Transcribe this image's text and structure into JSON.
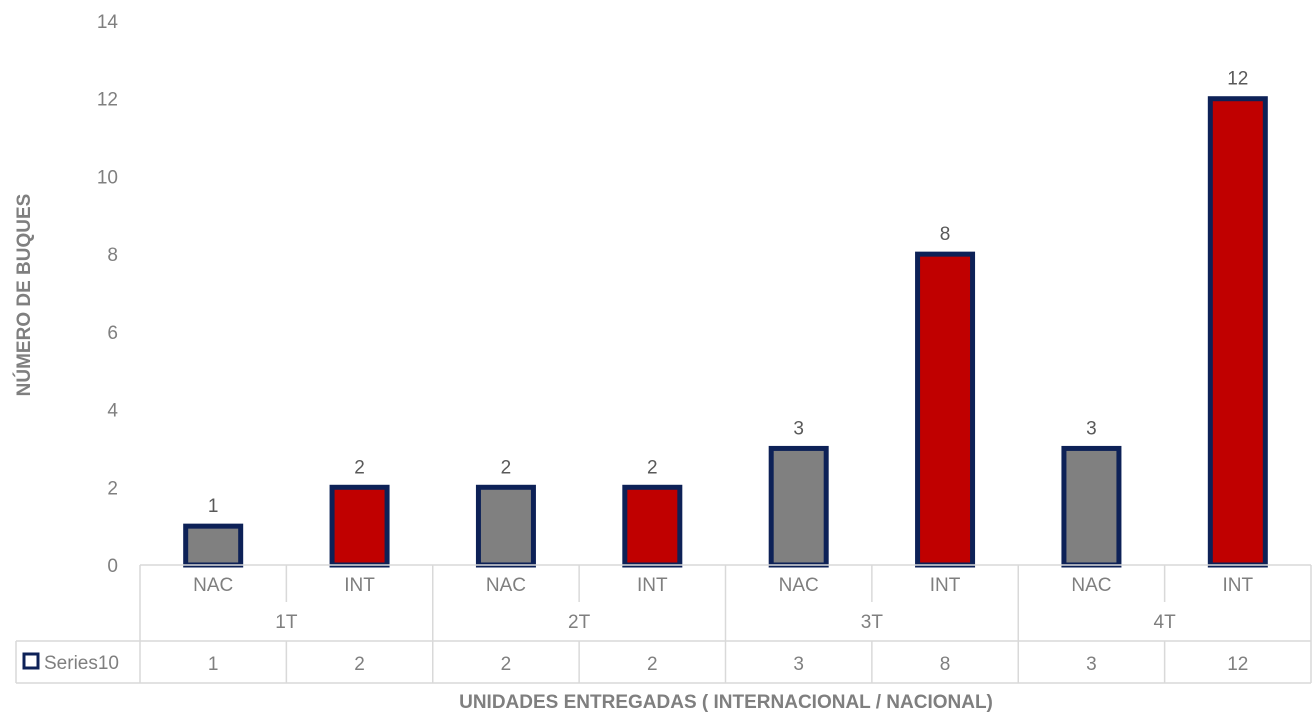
{
  "chart_data": {
    "type": "bar",
    "ylabel": "NÚMERO DE BUQUES",
    "xlabel": "UNIDADES ENTREGADAS ( INTERNACIONAL / NACIONAL)",
    "ylim": [
      0,
      14
    ],
    "yticks": [
      0,
      2,
      4,
      6,
      8,
      10,
      12,
      14
    ],
    "groups": [
      "1T",
      "2T",
      "3T",
      "4T"
    ],
    "categories": [
      "NAC",
      "INT",
      "NAC",
      "INT",
      "NAC",
      "INT",
      "NAC",
      "INT"
    ],
    "series": [
      {
        "name": "Series10",
        "values": [
          1,
          2,
          2,
          2,
          3,
          8,
          3,
          12
        ]
      }
    ],
    "data_table": true,
    "legend_in_table": true,
    "colors": {
      "NAC": "#808080",
      "INT": "#c00000",
      "border": "#0d2157",
      "axis_text": "#7f7f7f",
      "grid": "#d9d9d9"
    }
  }
}
